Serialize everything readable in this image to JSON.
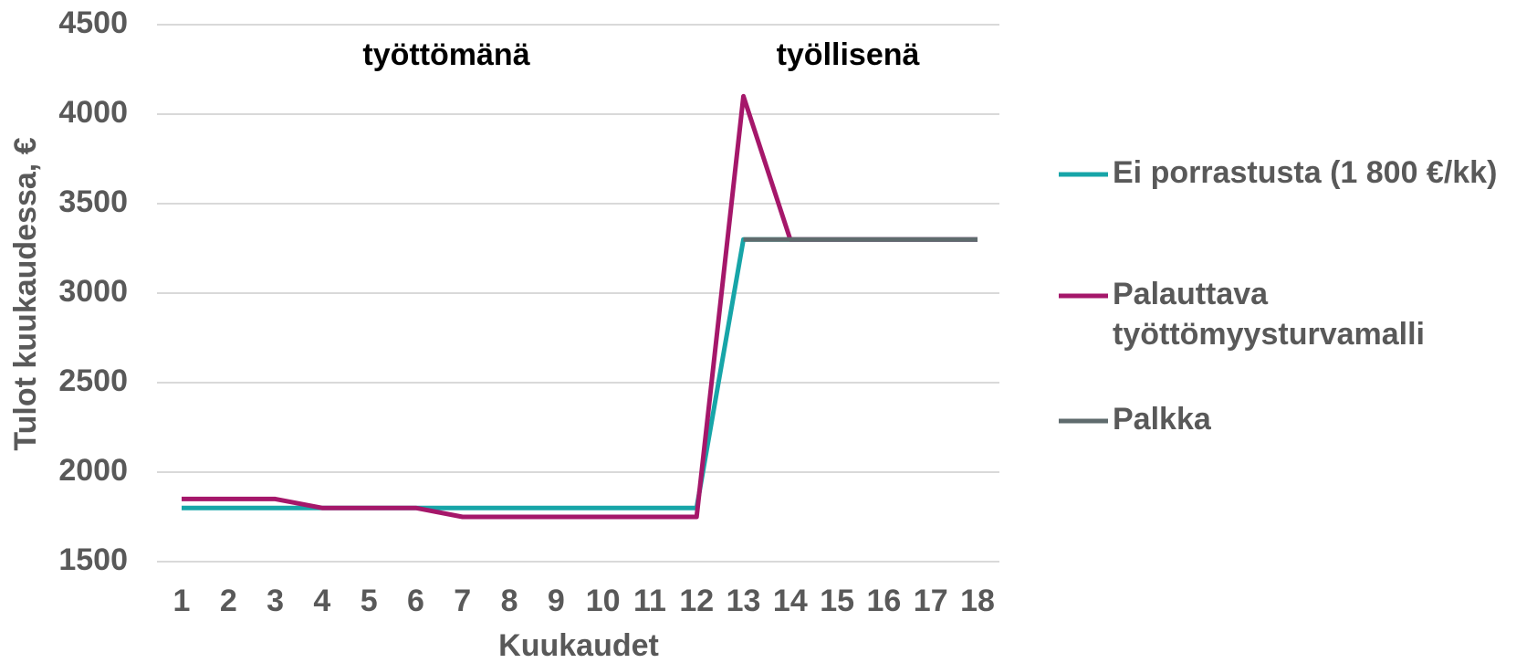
{
  "chart_data": {
    "type": "line",
    "y_label": "Tulot kuukaudessa, €",
    "x_label": "Kuukaudet",
    "annotations": [
      "työttömänä",
      "työllisenä"
    ],
    "categories": [
      "1",
      "2",
      "3",
      "4",
      "5",
      "6",
      "7",
      "8",
      "9",
      "10",
      "11",
      "12",
      "13",
      "14",
      "15",
      "16",
      "17",
      "18"
    ],
    "series": [
      {
        "name": "Ei porrastusta (1 800 €/kk)",
        "color": "#17a5a8",
        "values": [
          1800,
          1800,
          1800,
          1800,
          1800,
          1800,
          1800,
          1800,
          1800,
          1800,
          1800,
          1800,
          3300,
          3300,
          3300,
          3300,
          3300,
          3300
        ]
      },
      {
        "name": "Palauttava työttömyysturvamalli",
        "color": "#a5176a",
        "values": [
          1850,
          1850,
          1850,
          1800,
          1800,
          1800,
          1750,
          1750,
          1750,
          1750,
          1750,
          1750,
          4100,
          3300,
          3300,
          3300,
          3300,
          3300
        ]
      },
      {
        "name": "Palkka",
        "color": "#5f6b6d",
        "values": [
          null,
          null,
          null,
          null,
          null,
          null,
          null,
          null,
          null,
          null,
          null,
          null,
          3300,
          3300,
          3300,
          3300,
          3300,
          3300
        ]
      }
    ],
    "ylim": [
      1500,
      4500
    ],
    "yticks": [
      1500,
      2000,
      2500,
      3000,
      3500,
      4000,
      4500
    ],
    "grid": true
  }
}
